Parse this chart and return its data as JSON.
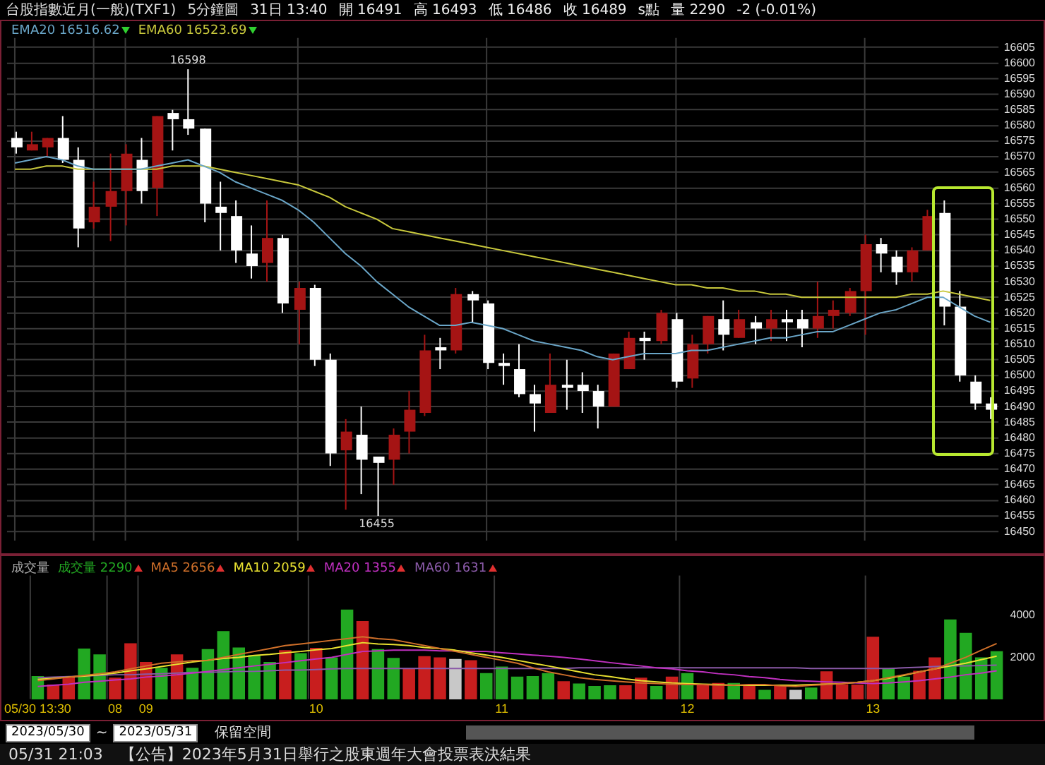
{
  "chart_data": [
    {
      "type": "candlestick",
      "title": "台股指數近月(一般)(TXF1)",
      "subtitle": "5分鐘圖",
      "annotations": [
        "31日 13:40",
        "開 16491",
        "高 16493",
        "低 16486",
        "收 16489",
        "s點",
        "量 2290",
        "-2 (-0.01%)",
        {
          "text": "16598",
          "y": 16598
        },
        {
          "text": "16455",
          "y": 16455
        }
      ],
      "categories": [
        null,
        null,
        null,
        null,
        null,
        null,
        null,
        null,
        null,
        null,
        null,
        null,
        null,
        null,
        null,
        null,
        null,
        null,
        null,
        null,
        null,
        null,
        null,
        null,
        null,
        null,
        null,
        null,
        null,
        null,
        null,
        null,
        null,
        null,
        null,
        null,
        null,
        null,
        null,
        null,
        null,
        null,
        null,
        null,
        null,
        null,
        null,
        null,
        null,
        null,
        null,
        null,
        null,
        null,
        null,
        null,
        null,
        null,
        null,
        null,
        null,
        null,
        null
      ],
      "ohlc": [
        [
          16576,
          16578,
          16571,
          16573
        ],
        [
          16572,
          16578,
          16572,
          16574
        ],
        [
          16573,
          16576,
          16570,
          16576
        ],
        [
          16576,
          16583,
          16568,
          16569
        ],
        [
          16569,
          16573,
          16541,
          16547
        ],
        [
          16549,
          16562,
          16547,
          16554
        ],
        [
          16554,
          16571,
          16543,
          16559
        ],
        [
          16559,
          16574,
          16548,
          16571
        ],
        [
          16569,
          16576,
          16555,
          16559
        ],
        [
          16560,
          16583,
          16551,
          16583
        ],
        [
          16584,
          16585,
          16572,
          16582
        ],
        [
          16582,
          16598,
          16577,
          16579
        ],
        [
          16579,
          16579,
          16549,
          16555
        ],
        [
          16554,
          16562,
          16540,
          16552
        ],
        [
          16551,
          16556,
          16536,
          16540
        ],
        [
          16539,
          16548,
          16531,
          16535
        ],
        [
          16536,
          16556,
          16530,
          16544
        ],
        [
          16544,
          16545,
          16520,
          16523
        ],
        [
          16521,
          16530,
          16510,
          16528
        ],
        [
          16528,
          16529,
          16503,
          16505
        ],
        [
          16505,
          16507,
          16471,
          16475
        ],
        [
          16476,
          16486,
          16457,
          16482
        ],
        [
          16481,
          16490,
          16462,
          16473
        ],
        [
          16474,
          16474,
          16455,
          16472
        ],
        [
          16473,
          16483,
          16465,
          16481
        ],
        [
          16482,
          16495,
          16475,
          16489
        ],
        [
          16488,
          16513,
          16487,
          16508
        ],
        [
          16509,
          16512,
          16502,
          16508
        ],
        [
          16508,
          16528,
          16507,
          16526
        ],
        [
          16526,
          16527,
          16517,
          16524
        ],
        [
          16523,
          16524,
          16502,
          16504
        ],
        [
          16504,
          16507,
          16497,
          16503
        ],
        [
          16502,
          16510,
          16493,
          16494
        ],
        [
          16494,
          16497,
          16482,
          16491
        ],
        [
          16488,
          16507,
          16488,
          16497
        ],
        [
          16497,
          16505,
          16489,
          16496
        ],
        [
          16497,
          16501,
          16488,
          16495
        ],
        [
          16495,
          16497,
          16483,
          16490
        ],
        [
          16490,
          16507,
          16490,
          16507
        ],
        [
          16502,
          16514,
          16502,
          16512
        ],
        [
          16512,
          16514,
          16505,
          16511
        ],
        [
          16511,
          16521,
          16510,
          16520
        ],
        [
          16518,
          16520,
          16496,
          16498
        ],
        [
          16499,
          16513,
          16496,
          16510
        ],
        [
          16510,
          16519,
          16507,
          16519
        ],
        [
          16518,
          16524,
          16508,
          16513
        ],
        [
          16512,
          16521,
          16512,
          16518
        ],
        [
          16517,
          16519,
          16510,
          16515
        ],
        [
          16515,
          16521,
          16511,
          16518
        ],
        [
          16518,
          16521,
          16511,
          16517
        ],
        [
          16518,
          16521,
          16509,
          16515
        ],
        [
          16515,
          16530,
          16512,
          16519
        ],
        [
          16519,
          16524,
          16515,
          16521
        ],
        [
          16520,
          16528,
          16519,
          16527
        ],
        [
          16527,
          16545,
          16513,
          16542
        ],
        [
          16542,
          16544,
          16533,
          16539
        ],
        [
          16538,
          16540,
          16529,
          16533
        ],
        [
          16533,
          16541,
          16530,
          16540
        ],
        [
          16540,
          16553,
          16540,
          16551
        ],
        [
          16552,
          16556,
          16516,
          16522
        ],
        [
          16522,
          16527,
          16498,
          16500
        ],
        [
          16498,
          16500,
          16489,
          16491
        ],
        [
          16491,
          16493,
          16486,
          16489
        ]
      ],
      "colors": [
        "#ffffff",
        "#a51414",
        "#a51414",
        "#ffffff",
        "#ffffff",
        "#a51414",
        "#a51414",
        "#a51414",
        "#ffffff",
        "#a51414",
        "#ffffff",
        "#ffffff",
        "#ffffff",
        "#ffffff",
        "#ffffff",
        "#ffffff",
        "#a51414",
        "#ffffff",
        "#a51414",
        "#ffffff",
        "#ffffff",
        "#a51414",
        "#ffffff",
        "#ffffff",
        "#a51414",
        "#a51414",
        "#a51414",
        "#ffffff",
        "#a51414",
        "#ffffff",
        "#ffffff",
        "#ffffff",
        "#ffffff",
        "#ffffff",
        "#a51414",
        "#ffffff",
        "#ffffff",
        "#ffffff",
        "#a51414",
        "#a51414",
        "#ffffff",
        "#a51414",
        "#ffffff",
        "#a51414",
        "#a51414",
        "#ffffff",
        "#a51414",
        "#ffffff",
        "#a51414",
        "#ffffff",
        "#ffffff",
        "#a51414",
        "#a51414",
        "#a51414",
        "#a51414",
        "#ffffff",
        "#ffffff",
        "#a51414",
        "#a51414",
        "#ffffff",
        "#ffffff",
        "#ffffff",
        "#ffffff"
      ],
      "series": [
        {
          "name": "EMA20 16516.62",
          "type": "line",
          "color": "#6aa6c8",
          "values": [
            16568,
            16569,
            16570,
            16569,
            16567,
            16566,
            16566,
            16566,
            16566,
            16567,
            16568,
            16569,
            16567,
            16565,
            16562,
            16560,
            16558,
            16556,
            16553,
            16549,
            16544,
            16539,
            16535,
            16530,
            16526,
            16522,
            16519,
            16516,
            16516,
            16517,
            16516,
            16515,
            16513,
            16511,
            16510,
            16509,
            16508,
            16506,
            16505,
            16506,
            16507,
            16507,
            16507,
            16508,
            16508,
            16509,
            16510,
            16511,
            16512,
            16512,
            16513,
            16514,
            16514,
            16516,
            16518,
            16520,
            16521,
            16523,
            16525,
            16525,
            16522,
            16519,
            16517
          ]
        },
        {
          "name": "EMA60 16523.69",
          "type": "line",
          "color": "#c8c83c",
          "values": [
            16566,
            16566,
            16567,
            16567,
            16566,
            16566,
            16566,
            16566,
            16566,
            16566,
            16567,
            16567,
            16567,
            16566,
            16565,
            16564,
            16563,
            16562,
            16561,
            16559,
            16557,
            16554,
            16552,
            16550,
            16547,
            16546,
            16545,
            16544,
            16543,
            16542,
            16541,
            16540,
            16539,
            16538,
            16537,
            16536,
            16535,
            16534,
            16533,
            16532,
            16531,
            16530,
            16529,
            16529,
            16528,
            16528,
            16527,
            16527,
            16526,
            16526,
            16525,
            16525,
            16525,
            16525,
            16525,
            16525,
            16525,
            16526,
            16526,
            16527,
            16526,
            16525,
            16524
          ]
        }
      ],
      "ylim": [
        16447,
        16608
      ],
      "yticks": [
        16450,
        16455,
        16460,
        16465,
        16470,
        16475,
        16480,
        16485,
        16490,
        16495,
        16500,
        16505,
        16510,
        16515,
        16520,
        16525,
        16530,
        16535,
        16540,
        16545,
        16550,
        16555,
        16560,
        16565,
        16570,
        16575,
        16580,
        16585,
        16590,
        16595,
        16600,
        16605
      ],
      "grid": true,
      "legend": "top left",
      "tick_labels": "y",
      "marker": "none"
    },
    {
      "type": "bar",
      "ylabel": "成交量",
      "annotations": [
        "2023/05/30",
        "~",
        "2023/05/31",
        "保留空間",
        "05/31 21:03",
        "【公告】2023年5月31日舉行之股東週年大會投票表決結果"
      ],
      "categories": [
        "05/30 13:30",
        null,
        null,
        null,
        null,
        "08",
        null,
        "09",
        null,
        null,
        null,
        null,
        null,
        null,
        null,
        null,
        null,
        null,
        "10",
        null,
        null,
        null,
        null,
        null,
        null,
        null,
        null,
        null,
        null,
        null,
        "11",
        null,
        null,
        null,
        null,
        null,
        null,
        null,
        null,
        null,
        null,
        null,
        "12",
        null,
        null,
        null,
        null,
        null,
        null,
        null,
        null,
        null,
        null,
        null,
        "13",
        null,
        null,
        null,
        null,
        null,
        null,
        null,
        null
      ],
      "series": [
        {
          "name": "成交量 2290",
          "type": "bar",
          "colors": [
            "#22a822",
            "#c81e1e",
            "#c81e1e",
            "#22a822",
            "#22a822",
            "#c81e1e",
            "#c81e1e",
            "#c81e1e",
            "#22a822",
            "#c81e1e",
            "#22a822",
            "#22a822",
            "#22a822",
            "#22a822",
            "#22a822",
            "#22a822",
            "#c81e1e",
            "#22a822",
            "#c81e1e",
            "#22a822",
            "#22a822",
            "#c81e1e",
            "#22a822",
            "#22a822",
            "#c81e1e",
            "#c81e1e",
            "#c81e1e",
            "#c8c8c8",
            "#c81e1e",
            "#22a822",
            "#22a822",
            "#22a822",
            "#22a822",
            "#22a822",
            "#c81e1e",
            "#22a822",
            "#22a822",
            "#22a822",
            "#c81e1e",
            "#c81e1e",
            "#22a822",
            "#c81e1e",
            "#22a822",
            "#c81e1e",
            "#c81e1e",
            "#22a822",
            "#c81e1e",
            "#22a822",
            "#c81e1e",
            "#c8c8c8",
            "#22a822",
            "#c81e1e",
            "#c81e1e",
            "#c81e1e",
            "#c81e1e",
            "#22a822",
            "#22a822",
            "#c81e1e",
            "#c81e1e",
            "#22a822",
            "#22a822",
            "#22a822",
            "#22a822"
          ],
          "values": [
            1110,
            700,
            1080,
            2420,
            2140,
            1030,
            2670,
            1780,
            1500,
            2140,
            1500,
            2390,
            3250,
            2470,
            2110,
            1780,
            2340,
            2200,
            2450,
            2000,
            4280,
            3730,
            2390,
            1970,
            1450,
            2060,
            2000,
            1920,
            1860,
            1250,
            1560,
            1080,
            1110,
            1250,
            860,
            750,
            640,
            670,
            670,
            1030,
            640,
            1080,
            1250,
            700,
            780,
            780,
            670,
            450,
            670,
            450,
            560,
            1330,
            720,
            700,
            2980,
            1470,
            1080,
            1360,
            2000,
            3810,
            3170,
            2000,
            2290
          ]
        },
        {
          "name": "MA5 2656",
          "type": "line",
          "color": "#d0702a",
          "values": [
            890,
            970,
            1060,
            1140,
            1220,
            1310,
            1450,
            1590,
            1720,
            1780,
            1840,
            1860,
            2000,
            2140,
            2280,
            2420,
            2560,
            2640,
            2720,
            2810,
            2890,
            2980,
            2890,
            2840,
            2700,
            2560,
            2420,
            2280,
            2140,
            2000,
            1860,
            1720,
            1500,
            1310,
            1170,
            1030,
            950,
            890,
            830,
            780,
            750,
            720,
            700,
            700,
            670,
            670,
            700,
            700,
            640,
            610,
            670,
            700,
            750,
            810,
            890,
            1030,
            1170,
            1310,
            1450,
            1720,
            2000,
            2340,
            2660
          ]
        },
        {
          "name": "MA10 2059",
          "type": "line",
          "color": "#e8e030",
          "values": [
            950,
            1000,
            1060,
            1110,
            1170,
            1250,
            1360,
            1450,
            1560,
            1670,
            1780,
            1860,
            1950,
            2000,
            2090,
            2140,
            2220,
            2280,
            2360,
            2420,
            2560,
            2700,
            2640,
            2610,
            2560,
            2470,
            2420,
            2340,
            2220,
            2110,
            2000,
            1860,
            1720,
            1590,
            1450,
            1310,
            1170,
            1080,
            970,
            890,
            830,
            780,
            750,
            720,
            700,
            670,
            670,
            670,
            670,
            670,
            700,
            720,
            750,
            810,
            890,
            1000,
            1140,
            1310,
            1450,
            1590,
            1720,
            1890,
            2060
          ]
        },
        {
          "name": "MA20 1355",
          "type": "line",
          "color": "#c030c0",
          "values": [
            610,
            670,
            720,
            810,
            860,
            920,
            970,
            1060,
            1110,
            1170,
            1250,
            1330,
            1420,
            1500,
            1590,
            1670,
            1750,
            1840,
            1920,
            2000,
            2140,
            2280,
            2310,
            2340,
            2340,
            2340,
            2310,
            2310,
            2280,
            2280,
            2220,
            2170,
            2110,
            2060,
            2000,
            1920,
            1840,
            1750,
            1670,
            1590,
            1500,
            1450,
            1360,
            1310,
            1220,
            1170,
            1080,
            1030,
            950,
            890,
            860,
            830,
            810,
            780,
            750,
            780,
            830,
            890,
            970,
            1060,
            1170,
            1250,
            1360
          ]
        },
        {
          "name": "MA60 1631",
          "type": "line",
          "color": "#8a5aa8",
          "values": [
            1030,
            1060,
            1080,
            1110,
            1140,
            1170,
            1170,
            1200,
            1220,
            1250,
            1280,
            1280,
            1310,
            1330,
            1330,
            1360,
            1390,
            1390,
            1420,
            1450,
            1470,
            1470,
            1470,
            1470,
            1470,
            1470,
            1470,
            1470,
            1470,
            1470,
            1470,
            1470,
            1470,
            1470,
            1470,
            1500,
            1500,
            1500,
            1500,
            1500,
            1500,
            1500,
            1500,
            1500,
            1500,
            1500,
            1500,
            1500,
            1500,
            1500,
            1470,
            1470,
            1470,
            1470,
            1470,
            1470,
            1500,
            1530,
            1560,
            1590,
            1590,
            1610,
            1630
          ]
        }
      ],
      "ylim": [
        0,
        5900
      ],
      "yticks": [
        2000,
        4000
      ],
      "grid": "x",
      "legend": "top left",
      "marker": "none"
    }
  ]
}
